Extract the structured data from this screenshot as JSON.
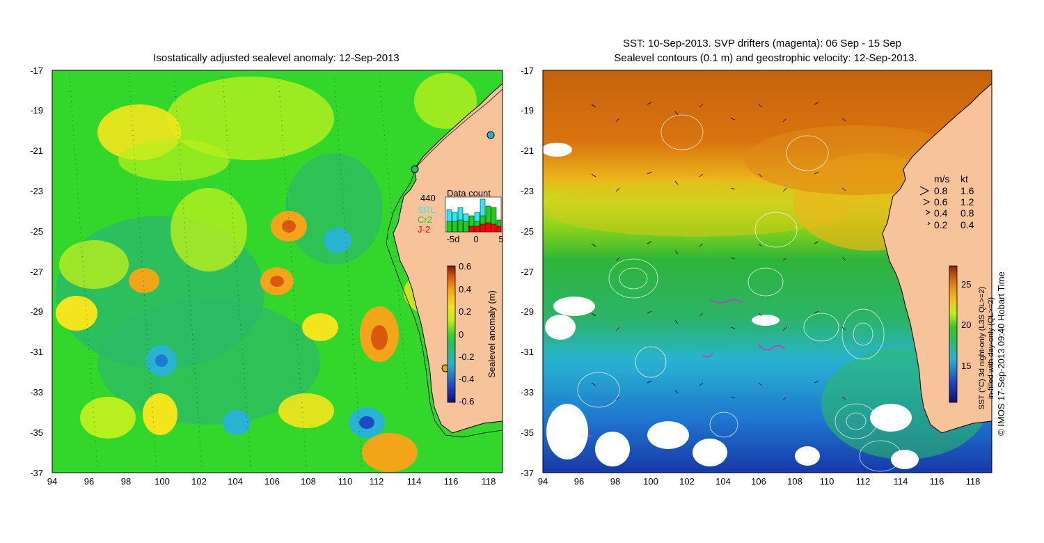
{
  "left_map": {
    "title": "Isostatically adjusted sealevel anomaly: 12-Sep-2013",
    "x_ticks": [
      "94",
      "96",
      "98",
      "100",
      "102",
      "104",
      "106",
      "108",
      "110",
      "112",
      "114",
      "116",
      "118"
    ],
    "y_ticks": [
      "-17",
      "-19",
      "-21",
      "-23",
      "-25",
      "-27",
      "-29",
      "-31",
      "-33",
      "-35",
      "-37"
    ],
    "colorbar": {
      "label": "Sealevel anomaly (m)",
      "ticks": [
        "0.6",
        "0.4",
        "0.2",
        "0",
        "-0.2",
        "-0.4",
        "-0.6"
      ],
      "range": [
        -0.6,
        0.6
      ]
    },
    "data_count": {
      "title": "Data count",
      "max_label": "440",
      "series": [
        {
          "name": "SRL",
          "color": "#33e6f0"
        },
        {
          "name": "Cr2",
          "color": "#22cc22"
        },
        {
          "name": "J-2",
          "color": "#ff0000"
        }
      ],
      "x_ticks": [
        "-5d",
        "0",
        "5"
      ]
    }
  },
  "right_map": {
    "title_line1": "SST: 10-Sep-2013. SVP drifters (magenta): 06 Sep - 15 Sep",
    "title_line2": "Sealevel contours (0.1 m) and geostrophic velocity: 12-Sep-2013.",
    "x_ticks": [
      "94",
      "96",
      "98",
      "100",
      "102",
      "104",
      "106",
      "108",
      "110",
      "112",
      "114",
      "116",
      "118"
    ],
    "y_ticks": [
      "-17",
      "-19",
      "-21",
      "-23",
      "-25",
      "-27",
      "-29",
      "-31",
      "-33",
      "-35",
      "-37"
    ],
    "velocity_legend": {
      "header_ms": "m/s",
      "header_kt": "kt",
      "rows": [
        {
          "ms": "0.8",
          "kt": "1.6"
        },
        {
          "ms": "0.6",
          "kt": "1.2"
        },
        {
          "ms": "0.4",
          "kt": "0.8"
        },
        {
          "ms": "0.2",
          "kt": "0.4"
        }
      ]
    },
    "colorbar": {
      "ticks": [
        "25",
        "20",
        "15"
      ],
      "label_line1": "SST (°C) 3d night-only (L3S QL>=2)",
      "label_line2": "in-filled with day-only (QL>=2)"
    }
  },
  "credit": "© IMOS 17-Sep-2013 09:40 Hobart Time",
  "colors": {
    "land": "#f7c39b",
    "sla_mid": "#33d62b",
    "sst_warm": "#d9750f",
    "sst_cool": "#29b3d1"
  }
}
